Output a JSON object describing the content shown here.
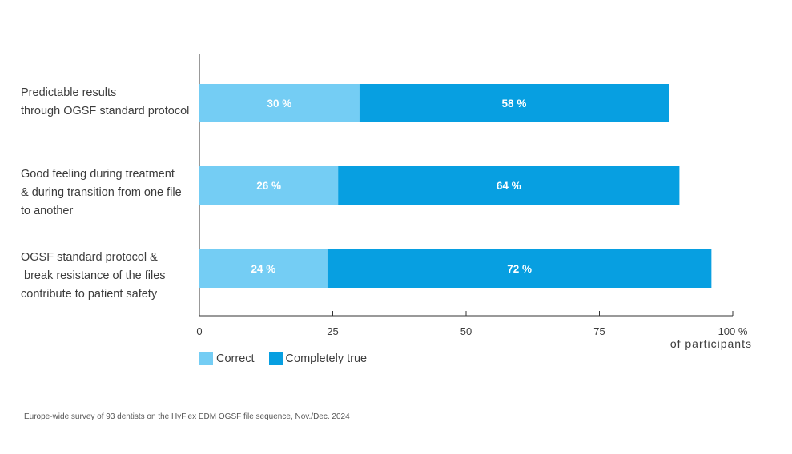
{
  "chart_data": {
    "type": "bar",
    "orientation": "horizontal",
    "stacked": true,
    "categories": [
      [
        "Predictable results",
        "through OGSF standard protocol"
      ],
      [
        "Good feeling during treatment",
        "& during transition from one file",
        "to another"
      ],
      [
        "OGSF standard protocol &",
        " break resistance of the files",
        "contribute to patient safety"
      ]
    ],
    "series": [
      {
        "name": "Correct",
        "values": [
          30,
          26,
          24
        ],
        "labels": [
          "30 %",
          "26 %",
          "24 %"
        ],
        "color": "#74cdf4"
      },
      {
        "name": "Completely true",
        "values": [
          58,
          64,
          72
        ],
        "labels": [
          "58 %",
          "64 %",
          "72 %"
        ],
        "color": "#079fe1"
      }
    ],
    "xlim": [
      0,
      100
    ],
    "xticks": [
      0,
      25,
      50,
      75,
      100
    ],
    "xtick_labels": [
      "0",
      "25",
      "50",
      "75",
      "100 %"
    ],
    "xlabel": "of participants",
    "grid": false,
    "legend_position": "bottom-left"
  },
  "footnote": "Europe-wide survey of 93 dentists on the HyFlex EDM OGSF file sequence, Nov./Dec. 2024"
}
